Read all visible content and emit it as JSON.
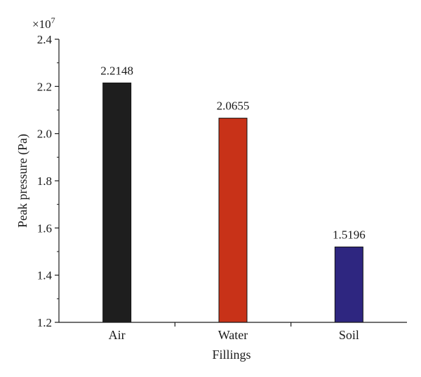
{
  "chart_data": {
    "type": "bar",
    "title": "",
    "xlabel": "Fillings",
    "ylabel": "Peak pressure (Pa)",
    "y_multiplier_label": "×10",
    "y_multiplier_exponent": "7",
    "categories": [
      "Air",
      "Water",
      "Soil"
    ],
    "values": [
      2.2148,
      2.0655,
      1.5196
    ],
    "data_labels": [
      "2.2148",
      "2.0655",
      "1.5196"
    ],
    "colors": [
      "#1e1e1e",
      "#c83218",
      "#2e2680"
    ],
    "ylim": [
      1.2,
      2.4
    ],
    "yticks": [
      1.2,
      1.4,
      1.6,
      1.8,
      2.0,
      2.2,
      2.4
    ],
    "ytick_labels": [
      "1.2",
      "1.4",
      "1.6",
      "1.8",
      "2.0",
      "2.2",
      "2.4"
    ],
    "grid": false,
    "legend": "none"
  }
}
